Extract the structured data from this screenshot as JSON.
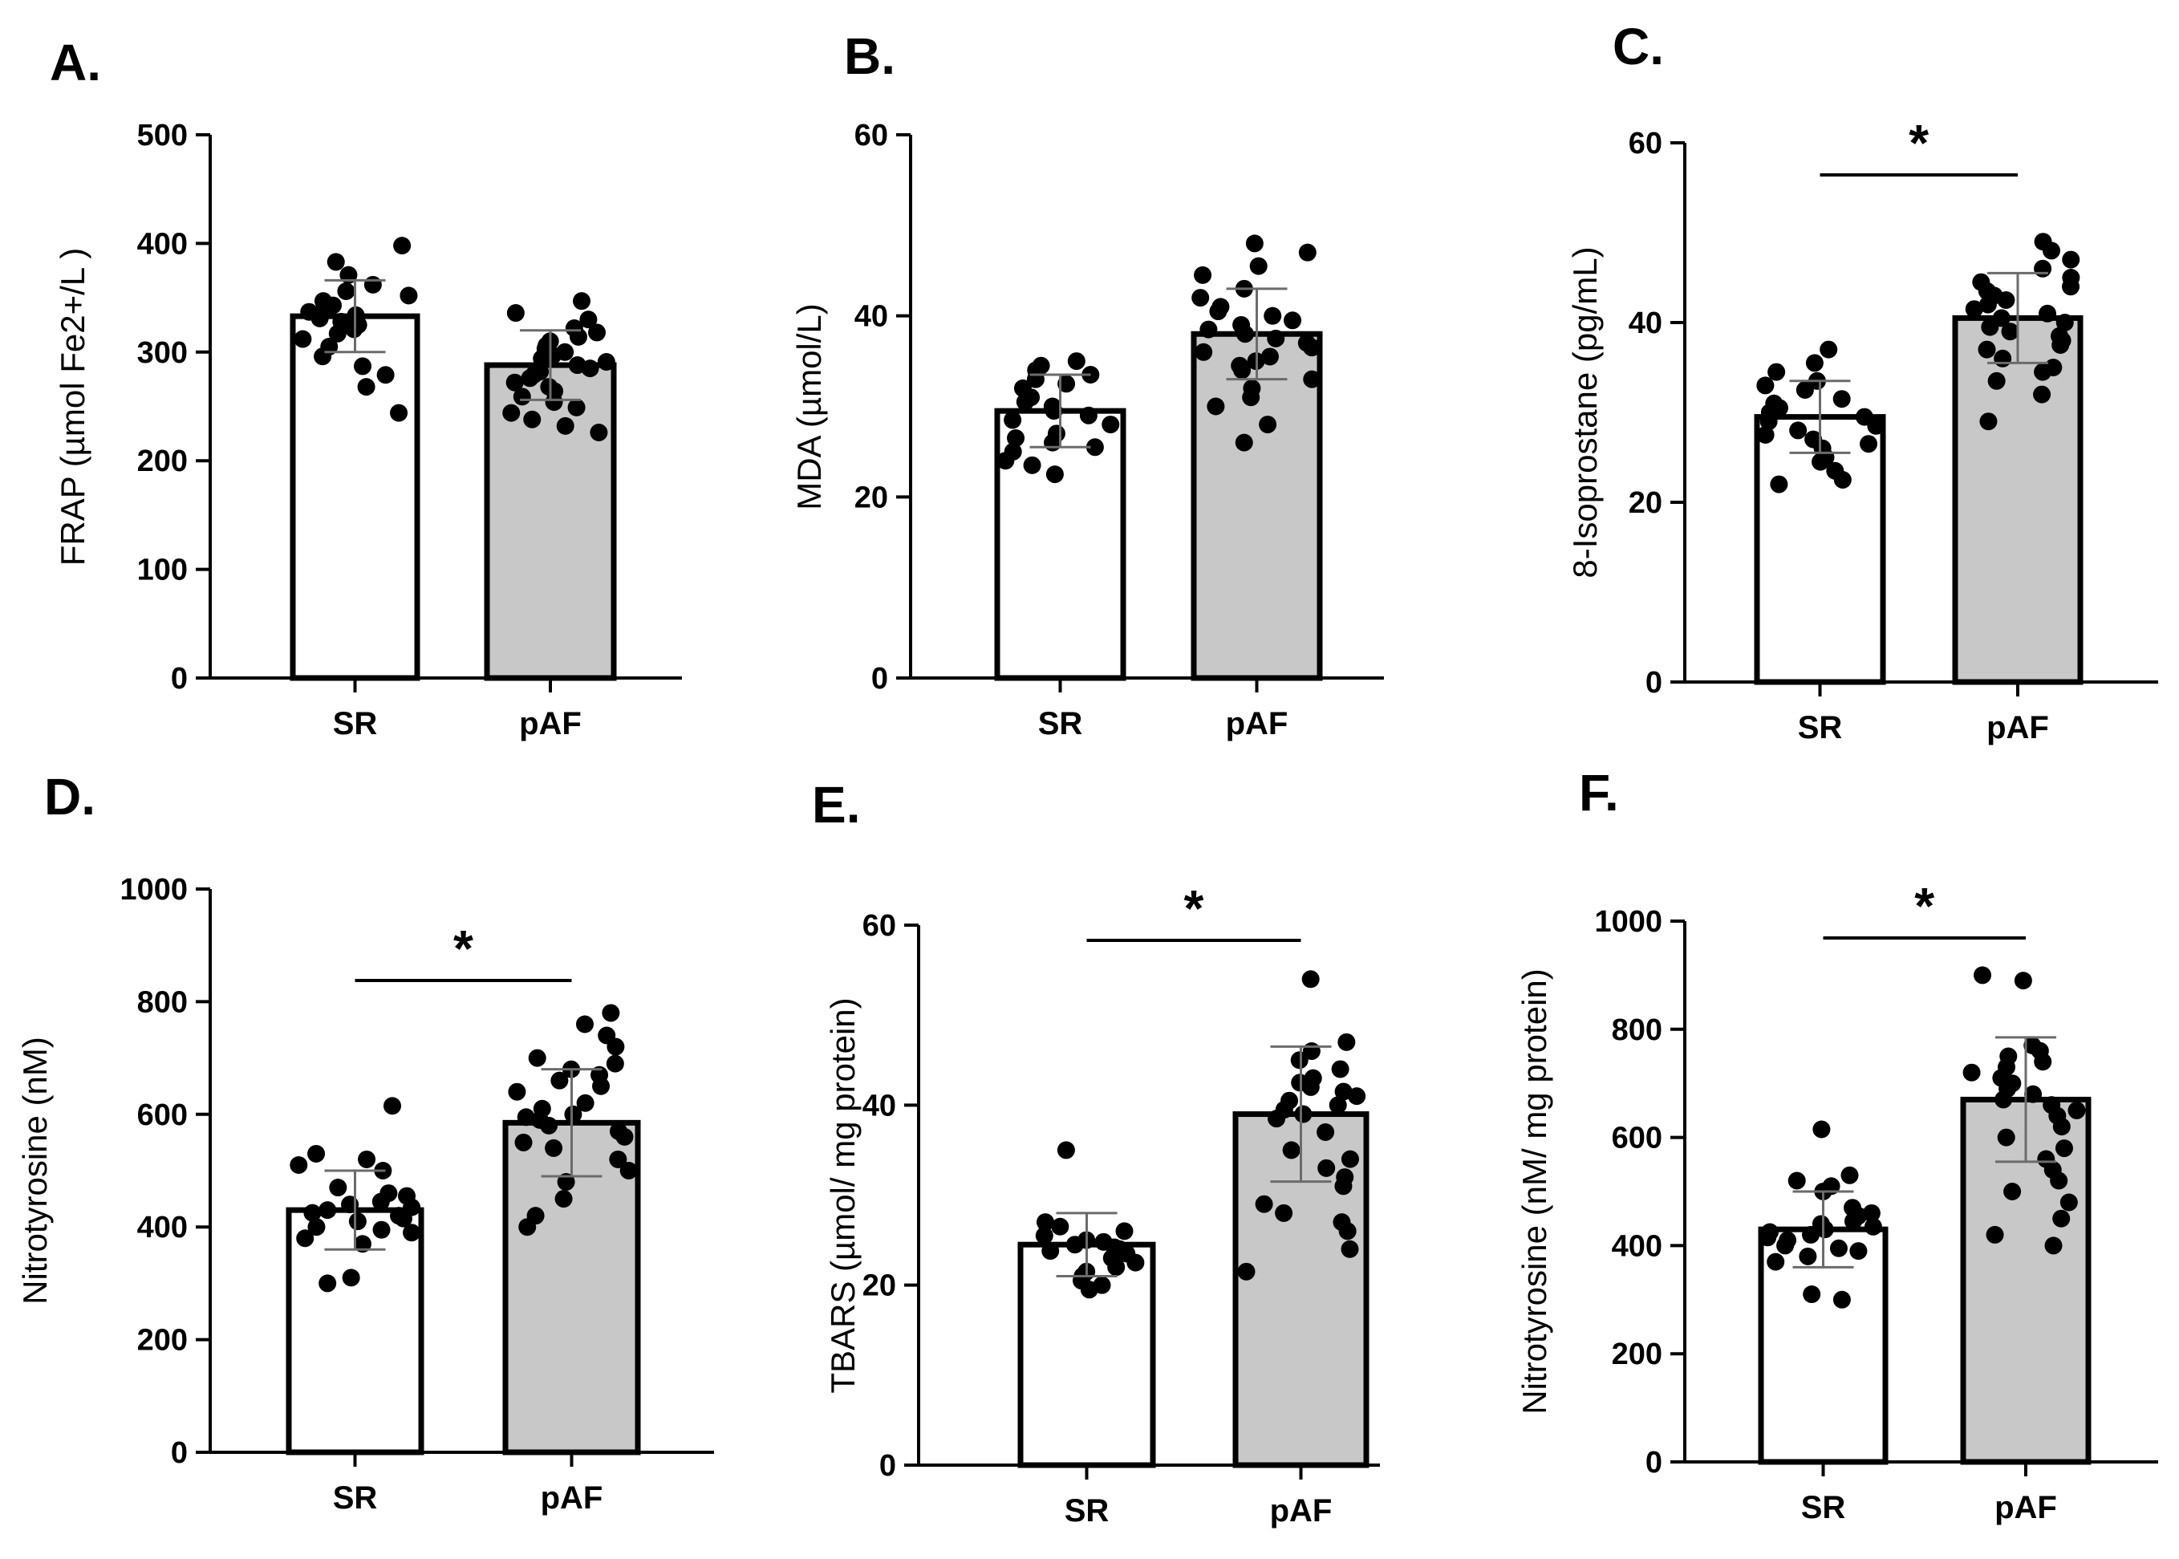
{
  "chart_data": [
    {
      "panel": "A.",
      "type": "bar",
      "ylabel": "FRAP (µmol Fe2+/L )",
      "ylim": [
        0,
        500
      ],
      "yticks": [
        0,
        100,
        200,
        300,
        400,
        500
      ],
      "categories": [
        "SR",
        "pAF"
      ],
      "values": [
        333,
        288
      ],
      "sd": [
        33,
        32
      ],
      "fills": [
        "#ffffff",
        "#c8c8c8"
      ],
      "significance": "",
      "points": [
        [
          398,
          383,
          371,
          362,
          356,
          352,
          347,
          343,
          340,
          337,
          334,
          331,
          328,
          325,
          321,
          317,
          312,
          305,
          296,
          287,
          279,
          268,
          244
        ],
        [
          347,
          336,
          330,
          322,
          318,
          314,
          310,
          306,
          303,
          300,
          297,
          294,
          291,
          288,
          285,
          282,
          279,
          276,
          272,
          268,
          264,
          259,
          254,
          249,
          244,
          238,
          232,
          226
        ]
      ]
    },
    {
      "panel": "B.",
      "type": "bar",
      "ylabel": "MDA (µmol/L)",
      "ylim": [
        0,
        60
      ],
      "yticks": [
        0,
        20,
        40,
        60
      ],
      "categories": [
        "SR",
        "pAF"
      ],
      "values": [
        29.5,
        38
      ],
      "sd": [
        4,
        5
      ],
      "fills": [
        "#ffffff",
        "#c8c8c8"
      ],
      "significance": "",
      "points": [
        [
          35,
          34.5,
          34,
          33.5,
          33,
          32.5,
          32,
          31,
          30.5,
          30,
          29.5,
          29,
          28.5,
          28,
          27,
          26.5,
          26,
          25.5,
          25,
          24,
          23.5,
          22.5
        ],
        [
          48,
          47,
          45.5,
          44.5,
          43,
          42,
          41,
          40.5,
          40,
          39.5,
          39,
          38.5,
          38,
          37.5,
          37,
          36.5,
          36,
          35.5,
          35,
          34.5,
          34,
          33,
          32,
          31,
          30,
          28,
          26
        ]
      ]
    },
    {
      "panel": "C.",
      "type": "bar",
      "ylabel": "8-Isoprostane (pg/mL)",
      "ylim": [
        0,
        60
      ],
      "yticks": [
        0,
        20,
        40,
        60
      ],
      "categories": [
        "SR",
        "pAF"
      ],
      "values": [
        29.5,
        40.5
      ],
      "sd": [
        4,
        5
      ],
      "fills": [
        "#ffffff",
        "#c8c8c8"
      ],
      "significance": "*",
      "points": [
        [
          37,
          35.5,
          34.5,
          33.5,
          33,
          32.5,
          31.5,
          31,
          30.5,
          30,
          29.5,
          29,
          28.5,
          28,
          27.5,
          27,
          26.5,
          26,
          25,
          24.5,
          23.5,
          22.5,
          22
        ],
        [
          49,
          48,
          47,
          46,
          45,
          44.5,
          44,
          43.5,
          43,
          42.5,
          42,
          41.5,
          41,
          40.5,
          40,
          39.5,
          39,
          38.5,
          38,
          37.5,
          37,
          36,
          35,
          34.5,
          33.5,
          32,
          29
        ]
      ]
    },
    {
      "panel": "D.",
      "type": "bar",
      "ylabel": "Nitrotyrosine (nM)",
      "ylim": [
        0,
        1000
      ],
      "yticks": [
        0,
        200,
        400,
        600,
        800,
        1000
      ],
      "categories": [
        "SR",
        "pAF"
      ],
      "values": [
        430,
        585
      ],
      "sd": [
        70,
        95
      ],
      "fills": [
        "#ffffff",
        "#c8c8c8"
      ],
      "significance": "*",
      "points": [
        [
          615,
          530,
          520,
          510,
          500,
          470,
          460,
          455,
          445,
          440,
          435,
          430,
          425,
          420,
          415,
          410,
          400,
          395,
          390,
          380,
          370,
          310,
          300
        ],
        [
          780,
          760,
          740,
          720,
          700,
          690,
          680,
          670,
          660,
          650,
          640,
          620,
          610,
          600,
          595,
          590,
          580,
          570,
          560,
          550,
          540,
          520,
          500,
          480,
          450,
          420,
          400
        ]
      ]
    },
    {
      "panel": "E.",
      "type": "bar",
      "ylabel": "TBARS (µmol/ mg protein)",
      "ylim": [
        0,
        60
      ],
      "yticks": [
        0,
        20,
        40,
        60
      ],
      "categories": [
        "SR",
        "pAF"
      ],
      "values": [
        24.5,
        39
      ],
      "sd": [
        3.5,
        7.5
      ],
      "fills": [
        "#ffffff",
        "#c8c8c8"
      ],
      "significance": "*",
      "points": [
        [
          35,
          27,
          26.5,
          26,
          25.5,
          25,
          24.8,
          24.5,
          24.2,
          24,
          23.8,
          23.5,
          23,
          22.5,
          22,
          21.5,
          21,
          20.5,
          20,
          19.5
        ],
        [
          54,
          47,
          46,
          45,
          44,
          43,
          42.5,
          42,
          41.5,
          41,
          40.5,
          40,
          39.5,
          39,
          38.5,
          37,
          35,
          34,
          33,
          32,
          31,
          29,
          28,
          27,
          26,
          24,
          21.5
        ]
      ]
    },
    {
      "panel": "F.",
      "type": "bar",
      "ylabel": "Nitrotyrosine (nM/ mg protein)",
      "ylim": [
        0,
        1000
      ],
      "yticks": [
        0,
        200,
        400,
        600,
        800,
        1000
      ],
      "categories": [
        "SR",
        "pAF"
      ],
      "values": [
        430,
        670
      ],
      "sd": [
        70,
        115
      ],
      "fills": [
        "#ffffff",
        "#c8c8c8"
      ],
      "significance": "*",
      "points": [
        [
          615,
          530,
          520,
          510,
          500,
          470,
          460,
          455,
          445,
          440,
          435,
          430,
          425,
          420,
          415,
          410,
          400,
          395,
          390,
          380,
          370,
          310,
          300
        ],
        [
          900,
          890,
          770,
          760,
          750,
          740,
          730,
          720,
          710,
          700,
          690,
          680,
          670,
          660,
          650,
          640,
          620,
          600,
          580,
          560,
          540,
          520,
          500,
          480,
          450,
          420,
          400
        ]
      ]
    }
  ]
}
